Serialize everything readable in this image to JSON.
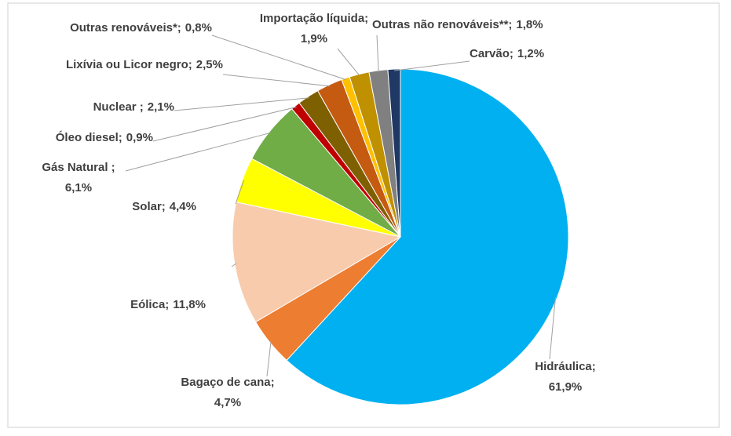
{
  "chart_data": {
    "type": "pie",
    "categories": [
      "Hidráulica;",
      "Bagaço de cana;",
      "Eólica;",
      "Solar;",
      "Gás Natural ;",
      "Óleo diesel;",
      "Nuclear ;",
      "Lixívia ou Licor negro;",
      "Outras renováveis*;",
      "Importação líquida;",
      "Outras não renováveis**;",
      "Carvão;"
    ],
    "values": [
      61.9,
      4.7,
      11.8,
      4.4,
      6.1,
      0.9,
      2.1,
      2.5,
      0.8,
      1.9,
      1.8,
      1.2
    ],
    "value_labels": [
      "61,9%",
      "4,7%",
      "11,8%",
      "4,4%",
      "6,1%",
      "0,9%",
      "2,1%",
      "2,5%",
      "0,8%",
      "1,9%",
      "1,8%",
      "1,2%"
    ],
    "colors": [
      "#00b0f0",
      "#ed7d31",
      "#f8cbad",
      "#ffff00",
      "#70ad47",
      "#c00000",
      "#7f6000",
      "#c55a11",
      "#ffc000",
      "#bf9000",
      "#808080",
      "#1f3864"
    ]
  }
}
